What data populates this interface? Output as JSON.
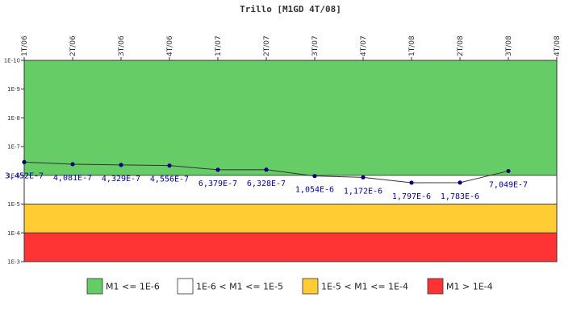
{
  "chart_data": {
    "type": "line",
    "title": "Trillo [M1GD 4T/08]",
    "x_ticks": [
      "1T/06",
      "2T/06",
      "3T/06",
      "4T/06",
      "1T/07",
      "2T/07",
      "3T/07",
      "4T/07",
      "1T/08",
      "2T/08",
      "3T/08",
      "4T/08"
    ],
    "y_scale": "log",
    "y_ticks": [
      "1E-10",
      "1E-9",
      "1E-8",
      "1E-7",
      "1E-6",
      "1E-5",
      "1E-4",
      "1E-3"
    ],
    "ylim": [
      1e-10,
      0.001
    ],
    "y_axis_inverted": true,
    "bands": [
      {
        "label": "M1 <= 1E-6",
        "from": 1e-10,
        "to": 1e-06,
        "color": "#66cc66"
      },
      {
        "label": "1E-6 < M1 <= 1E-5",
        "from": 1e-06,
        "to": 1e-05,
        "color": "#ffffff"
      },
      {
        "label": "1E-5 < M1 <= 1E-4",
        "from": 1e-05,
        "to": 0.0001,
        "color": "#ffcc33"
      },
      {
        "label": "M1 > 1E-4",
        "from": 0.0001,
        "to": 0.001,
        "color": "#ff3333"
      }
    ],
    "series": [
      {
        "x": [
          "1T/06",
          "2T/06",
          "3T/06",
          "4T/06",
          "1T/07",
          "2T/07",
          "3T/07",
          "4T/07",
          "1T/08",
          "2T/08",
          "3T/08"
        ],
        "values": [
          3.452e-07,
          4.081e-07,
          4.329e-07,
          4.556e-07,
          6.379e-07,
          6.328e-07,
          1.054e-06,
          1.172e-06,
          1.797e-06,
          1.783e-06,
          7.049e-07
        ],
        "labels": [
          "3,452E-7",
          "4,081E-7",
          "4,329E-7",
          "4,556E-7",
          "6,379E-7",
          "6,328E-7",
          "1,054E-6",
          "1,172E-6",
          "1,797E-6",
          "1,783E-6",
          "7,049E-7"
        ],
        "color": "#000080",
        "line_color": "#333333"
      }
    ],
    "legend_position": "bottom",
    "grid": false
  }
}
